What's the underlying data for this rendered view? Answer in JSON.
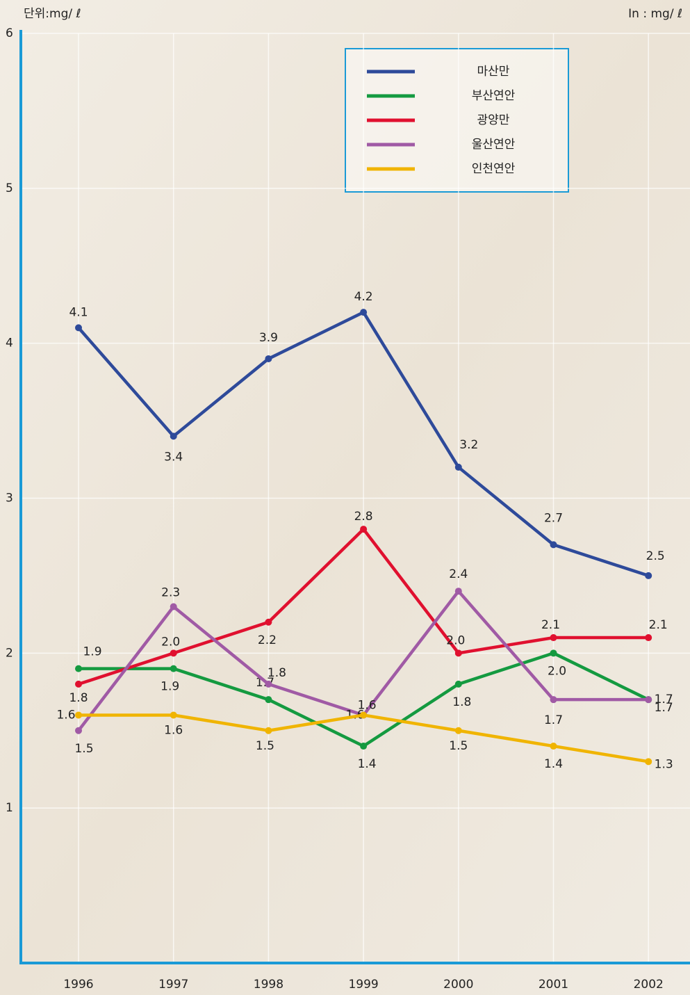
{
  "chart_data": {
    "type": "line",
    "unit_label": "단위:mg/ ℓ",
    "unit_label_en": "In : mg/ ℓ",
    "categories": [
      "1996",
      "1997",
      "1998",
      "1999",
      "2000",
      "2001",
      "2002"
    ],
    "ylim": [
      0,
      6
    ],
    "yticks": [
      1,
      2,
      3,
      4,
      5,
      6
    ],
    "grid": true,
    "series": [
      {
        "name": "마산만",
        "color": "#2e4a9a",
        "values": [
          4.1,
          3.4,
          3.9,
          4.2,
          3.2,
          2.7,
          2.5
        ]
      },
      {
        "name": "부산연안",
        "color": "#149a40",
        "values": [
          1.9,
          1.9,
          1.7,
          1.4,
          1.8,
          2,
          1.7
        ],
        "value_labels": [
          "1.9",
          "1.9",
          "1.7",
          "1.4",
          "1.8",
          "2.0",
          "1.7"
        ]
      },
      {
        "name": "광양만",
        "color": "#e0102f",
        "values": [
          1.8,
          2,
          2.2,
          2.8,
          2,
          2.1,
          2.1
        ],
        "value_labels": [
          "1.8",
          "2.0",
          "2.2",
          "2.8",
          "2.0",
          "2.1",
          "2.1"
        ]
      },
      {
        "name": "울산연안",
        "color": "#a05aa5",
        "values": [
          1.5,
          2.3,
          1.8,
          1.6,
          2.4,
          1.7,
          1.7
        ]
      },
      {
        "name": "인천연안",
        "color": "#f0b400",
        "values": [
          1.6,
          1.6,
          1.5,
          1.6,
          1.5,
          1.4,
          1.3
        ]
      }
    ]
  }
}
